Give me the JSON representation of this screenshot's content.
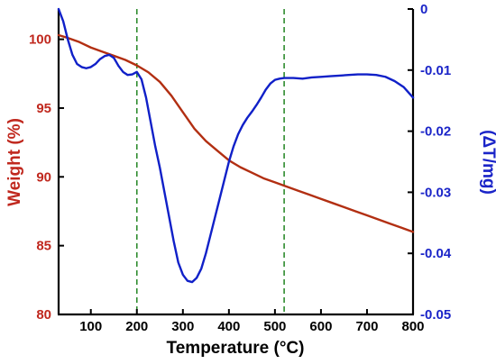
{
  "chart_data": {
    "type": "line",
    "x_axis": {
      "label": "Temperature (°C)",
      "range": [
        30,
        800
      ],
      "ticks": [
        100,
        200,
        300,
        400,
        500,
        600,
        700,
        800
      ]
    },
    "y_axis_left": {
      "label": "Weight (%)",
      "range": [
        80,
        102.2
      ],
      "ticks": [
        80,
        85,
        90,
        95,
        100
      ]
    },
    "y_axis_right": {
      "label": "(ΔT/mg)",
      "range": [
        -0.05,
        0
      ],
      "ticks": [
        0,
        -0.01,
        -0.02,
        -0.03,
        -0.04,
        -0.05
      ],
      "tick_labels": [
        "0",
        "-0.01",
        "-0.02",
        "-0.03",
        "-0.04",
        "-0.05"
      ]
    },
    "reference_lines_x": [
      200,
      520
    ],
    "grid": false,
    "colors": {
      "weight": "#b22f12",
      "dta": "#1020c8",
      "left_axis_text": "#c0281e",
      "right_axis_text": "#1a24c8",
      "reference": "#2e8b2e"
    },
    "series": [
      {
        "key": "weight",
        "axis": "left",
        "x": [
          30,
          50,
          75,
          100,
          125,
          150,
          175,
          200,
          225,
          250,
          275,
          300,
          325,
          350,
          375,
          400,
          425,
          450,
          475,
          500,
          525,
          550,
          575,
          600,
          625,
          650,
          675,
          700,
          725,
          750,
          775,
          800
        ],
        "y": [
          100.3,
          100.1,
          99.8,
          99.4,
          99.1,
          98.8,
          98.5,
          98.1,
          97.6,
          96.9,
          95.9,
          94.7,
          93.5,
          92.6,
          91.9,
          91.2,
          90.7,
          90.3,
          89.9,
          89.6,
          89.3,
          89.0,
          88.7,
          88.4,
          88.1,
          87.8,
          87.5,
          87.2,
          86.9,
          86.6,
          86.3,
          86.0
        ]
      },
      {
        "key": "dta",
        "axis": "right",
        "x": [
          30,
          40,
          50,
          60,
          70,
          80,
          90,
          100,
          110,
          120,
          130,
          140,
          150,
          160,
          170,
          180,
          190,
          200,
          210,
          220,
          230,
          240,
          250,
          260,
          270,
          280,
          290,
          300,
          310,
          320,
          330,
          340,
          350,
          360,
          370,
          380,
          390,
          400,
          410,
          420,
          430,
          440,
          450,
          460,
          470,
          480,
          490,
          500,
          510,
          520,
          540,
          560,
          580,
          600,
          620,
          640,
          660,
          680,
          700,
          720,
          740,
          760,
          780,
          800
        ],
        "y": [
          0.0,
          -0.002,
          -0.005,
          -0.0075,
          -0.009,
          -0.0095,
          -0.0097,
          -0.0095,
          -0.009,
          -0.0082,
          -0.0077,
          -0.0075,
          -0.008,
          -0.0093,
          -0.0103,
          -0.0108,
          -0.0107,
          -0.0103,
          -0.0115,
          -0.0145,
          -0.0185,
          -0.0225,
          -0.026,
          -0.03,
          -0.034,
          -0.038,
          -0.0415,
          -0.0435,
          -0.0445,
          -0.0447,
          -0.044,
          -0.0425,
          -0.04,
          -0.037,
          -0.034,
          -0.031,
          -0.028,
          -0.025,
          -0.0225,
          -0.0205,
          -0.019,
          -0.0178,
          -0.0168,
          -0.0157,
          -0.0145,
          -0.0132,
          -0.0122,
          -0.0116,
          -0.0114,
          -0.0113,
          -0.0113,
          -0.0114,
          -0.0112,
          -0.0111,
          -0.011,
          -0.0109,
          -0.0108,
          -0.0107,
          -0.0107,
          -0.0108,
          -0.0111,
          -0.0118,
          -0.0128,
          -0.0145
        ]
      }
    ]
  }
}
